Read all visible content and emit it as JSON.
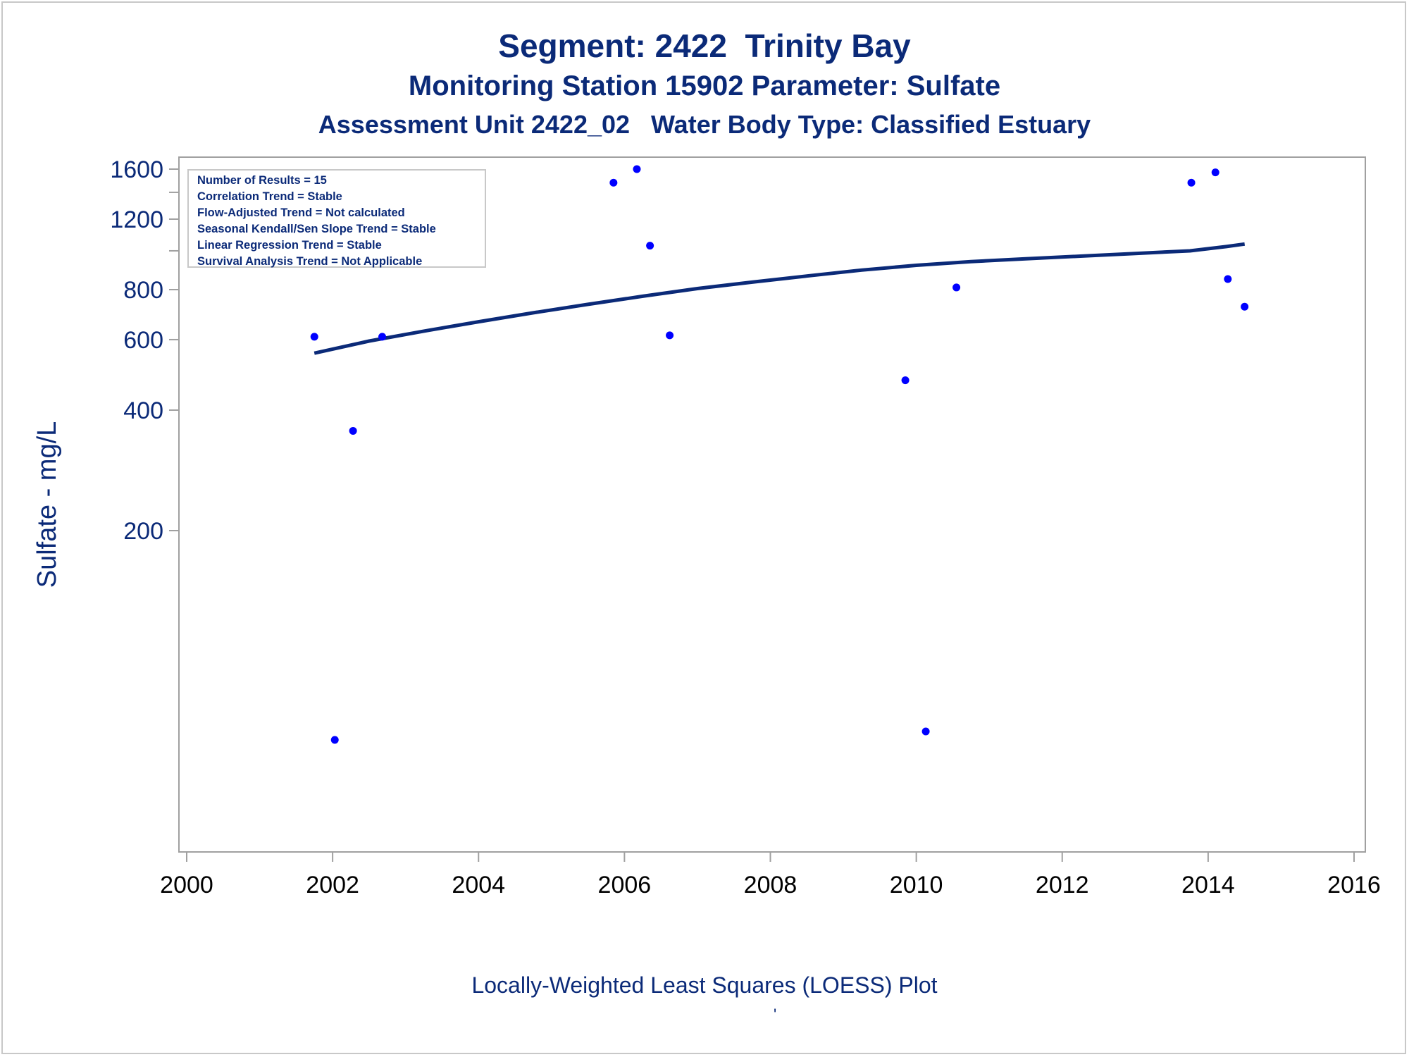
{
  "title": "Segment: 2422  Trinity Bay",
  "subtitle": "Monitoring Station 15902 Parameter: Sulfate",
  "subtitle2": "Assessment Unit 2422_02   Water Body Type: Classified Estuary",
  "caption": "Locally-Weighted Least Squares (LOESS) Plot",
  "footnote": "'",
  "stats": {
    "results": "Number of Results = 15",
    "correlation": "Correlation Trend = Stable",
    "flow_adjusted": "Flow-Adjusted Trend = Not calculated",
    "seasonal_kendall": "Seasonal Kendall/Sen Slope Trend = Stable",
    "linear_regression": "Linear Regression Trend = Stable",
    "survival": "Survival Analysis Trend = Not Applicable"
  },
  "colors": {
    "text": "#0b2a78",
    "points": "#0000ff",
    "trend": "#0b2a78",
    "axis": "#a0a0a0",
    "frame": "#c8c8c8"
  },
  "chart_data": {
    "type": "scatter",
    "ylabel": "Sulfate - mg/L",
    "yscale": "log",
    "xlim": [
      2000,
      2016
    ],
    "ylim": [
      60,
      1650
    ],
    "x_ticks": [
      2000,
      2002,
      2004,
      2006,
      2008,
      2010,
      2012,
      2014,
      2016
    ],
    "y_ticks": [
      200,
      400,
      600,
      800,
      1200,
      1600
    ],
    "y_minor_ticks": [
      1000,
      1400
    ],
    "series": [
      {
        "kind": "points",
        "x": [
          2001.75,
          2002.03,
          2002.28,
          2002.68,
          2005.85,
          2006.17,
          2006.35,
          2006.62,
          2009.85,
          2010.13,
          2010.55,
          2013.77,
          2014.1,
          2014.27,
          2014.5
        ],
        "y": [
          610,
          60,
          355,
          610,
          1480,
          1600,
          1030,
          615,
          475,
          63,
          810,
          1480,
          1570,
          850,
          725
        ]
      },
      {
        "kind": "line",
        "x": [
          2001.75,
          2002.5,
          2003.25,
          2004.0,
          2004.75,
          2005.5,
          2006.25,
          2007.0,
          2007.75,
          2008.5,
          2009.25,
          2010.0,
          2010.75,
          2011.5,
          2012.25,
          2013.0,
          2013.75,
          2014.25,
          2014.5
        ],
        "y": [
          555,
          595,
          630,
          665,
          700,
          735,
          770,
          805,
          835,
          865,
          895,
          920,
          940,
          955,
          970,
          985,
          1000,
          1025,
          1040
        ]
      }
    ]
  }
}
